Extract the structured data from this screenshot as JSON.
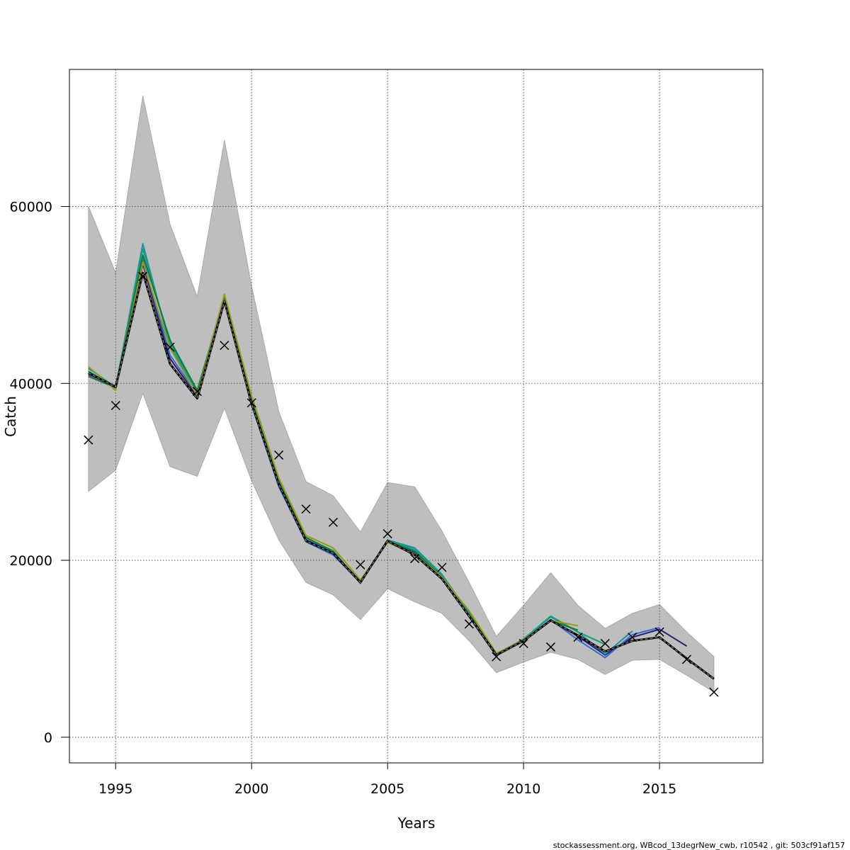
{
  "chart_data": {
    "type": "line",
    "title": "",
    "xlabel": "Years",
    "ylabel": "Catch",
    "xlim": [
      1993.3,
      2018.8
    ],
    "ylim": [
      -2900,
      75500
    ],
    "x_ticks": [
      1995,
      2000,
      2005,
      2010,
      2015
    ],
    "y_ticks": [
      0,
      20000,
      40000,
      60000
    ],
    "grid": true,
    "confidence_band": {
      "x": [
        1994,
        1995,
        1996,
        1997,
        1998,
        1999,
        2000,
        2001,
        2002,
        2003,
        2004,
        2005,
        2006,
        2007,
        2008,
        2009,
        2010,
        2011,
        2012,
        2013,
        2014,
        2015,
        2016,
        2017
      ],
      "lower": [
        27800,
        30200,
        38900,
        30600,
        29500,
        37200,
        29000,
        22300,
        17500,
        16100,
        13300,
        16800,
        15300,
        14000,
        10900,
        7300,
        8500,
        9600,
        8800,
        7100,
        8700,
        8800,
        7000,
        5100
      ],
      "upper": [
        60000,
        52500,
        72500,
        58000,
        49800,
        67500,
        51000,
        36800,
        28900,
        27300,
        23200,
        28800,
        28300,
        23300,
        17500,
        11400,
        14900,
        18600,
        14900,
        12300,
        14000,
        15000,
        11900,
        9100
      ]
    },
    "observed": {
      "x": [
        1994,
        1995,
        1996,
        1997,
        1998,
        1999,
        2000,
        2001,
        2002,
        2003,
        2004,
        2005,
        2006,
        2007,
        2008,
        2009,
        2010,
        2011,
        2012,
        2013,
        2014,
        2015,
        2016,
        2017
      ],
      "values": [
        33600,
        37500,
        52100,
        44100,
        39100,
        44300,
        37800,
        31900,
        25800,
        24300,
        19500,
        23000,
        20200,
        19200,
        12800,
        9100,
        10600,
        10200,
        11300,
        10600,
        11300,
        11900,
        8800,
        5100
      ]
    },
    "series": [
      {
        "color": "#000000",
        "style": "solid",
        "x": [
          1994,
          1995,
          1996,
          1997,
          1998,
          1999,
          2000,
          2001,
          2002,
          2003,
          2004,
          2005,
          2006,
          2007,
          2008,
          2009,
          2010,
          2011,
          2012,
          2013,
          2014,
          2015,
          2016,
          2017
        ],
        "values": [
          41200,
          39600,
          52500,
          42200,
          38300,
          49300,
          37700,
          28600,
          22200,
          20800,
          17500,
          22200,
          20600,
          17900,
          13700,
          9300,
          10900,
          13200,
          11500,
          9700,
          10900,
          11300,
          8900,
          6600
        ]
      },
      {
        "color": "#2e1a70",
        "style": "solid",
        "x": [
          1994,
          1995,
          1996,
          1997,
          1998,
          1999,
          2000,
          2001,
          2002,
          2003,
          2004,
          2005,
          2006,
          2007,
          2008,
          2009,
          2010,
          2011,
          2012,
          2013,
          2014,
          2015,
          2016
        ],
        "values": [
          41000,
          39700,
          53500,
          42800,
          38500,
          49400,
          37800,
          28700,
          22300,
          20900,
          17600,
          22200,
          20900,
          18000,
          13600,
          9200,
          11000,
          13300,
          11400,
          9300,
          11300,
          12200,
          10300
        ]
      },
      {
        "color": "#2f6ed6",
        "style": "solid",
        "x": [
          1994,
          1995,
          1996,
          1997,
          1998,
          1999,
          2000,
          2001,
          2002,
          2003,
          2004,
          2005,
          2006,
          2007,
          2008,
          2009,
          2010,
          2011,
          2012,
          2013,
          2014,
          2015
        ],
        "values": [
          41100,
          39600,
          54000,
          43200,
          38700,
          49500,
          37600,
          28300,
          22100,
          20600,
          17500,
          22200,
          21100,
          18200,
          13800,
          9300,
          11000,
          13300,
          11000,
          9000,
          11600,
          12400
        ]
      },
      {
        "color": "#1f8fa3",
        "style": "solid",
        "x": [
          1994,
          1995,
          1996,
          1997,
          1998,
          1999,
          2000,
          2001,
          2002,
          2003,
          2004,
          2005,
          2006,
          2007,
          2008,
          2009,
          2010,
          2011,
          2012,
          2013,
          2014
        ],
        "values": [
          41400,
          39500,
          55800,
          44200,
          39000,
          49800,
          38100,
          29000,
          22500,
          21000,
          17400,
          22300,
          21400,
          18400,
          14000,
          9400,
          11100,
          13600,
          11900,
          9400,
          12000
        ]
      },
      {
        "color": "#17a07a",
        "style": "solid",
        "x": [
          1994,
          1995,
          1996,
          1997,
          1998,
          1999,
          2000,
          2001,
          2002,
          2003,
          2004,
          2005,
          2006,
          2007,
          2008,
          2009,
          2010,
          2011,
          2012,
          2013
        ],
        "values": [
          41700,
          39600,
          55200,
          44600,
          39100,
          49900,
          38300,
          29100,
          22500,
          21100,
          17400,
          22300,
          21200,
          18300,
          14100,
          9300,
          11100,
          13700,
          11900,
          10500
        ]
      },
      {
        "color": "#0f7a3a",
        "style": "solid",
        "x": [
          1994,
          1995,
          1996,
          1997,
          1998,
          1999,
          2000,
          2001,
          2002,
          2003,
          2004,
          2005,
          2006,
          2007,
          2008,
          2009,
          2010,
          2011,
          2012
        ],
        "values": [
          40800,
          39500,
          54500,
          44900,
          39200,
          49600,
          38000,
          29000,
          22600,
          21000,
          17500,
          22200,
          21000,
          18100,
          14200,
          9300,
          11000,
          13200,
          12100
        ]
      },
      {
        "color": "#9a9a18",
        "style": "solid",
        "x": [
          1994,
          1995,
          1996,
          1997,
          1998,
          1999,
          2000,
          2001,
          2002,
          2003,
          2004,
          2005,
          2006,
          2007,
          2008,
          2009,
          2010,
          2011,
          2012
        ],
        "values": [
          41900,
          39200,
          53700,
          44000,
          38600,
          50100,
          38600,
          29300,
          22800,
          21400,
          17800,
          22000,
          20700,
          18100,
          14300,
          9500,
          11000,
          13200,
          12600
        ]
      },
      {
        "color": "#888888",
        "style": "dashed",
        "x": [
          1994,
          1995,
          1996,
          1997,
          1998,
          1999,
          2000,
          2001,
          2002,
          2003,
          2004,
          2005,
          2006,
          2007,
          2008,
          2009,
          2010,
          2011,
          2012,
          2013,
          2014,
          2015,
          2016,
          2017
        ],
        "values": [
          41200,
          39600,
          52500,
          42200,
          38300,
          49300,
          37700,
          28600,
          22200,
          20800,
          17500,
          22200,
          20600,
          17900,
          13700,
          9300,
          10900,
          13200,
          11500,
          9700,
          10900,
          11300,
          8900,
          6600
        ]
      }
    ]
  },
  "footer": "stockassessment.org, WBcod_13degrNew_cwb, r10542 , git: 503cf91af157"
}
